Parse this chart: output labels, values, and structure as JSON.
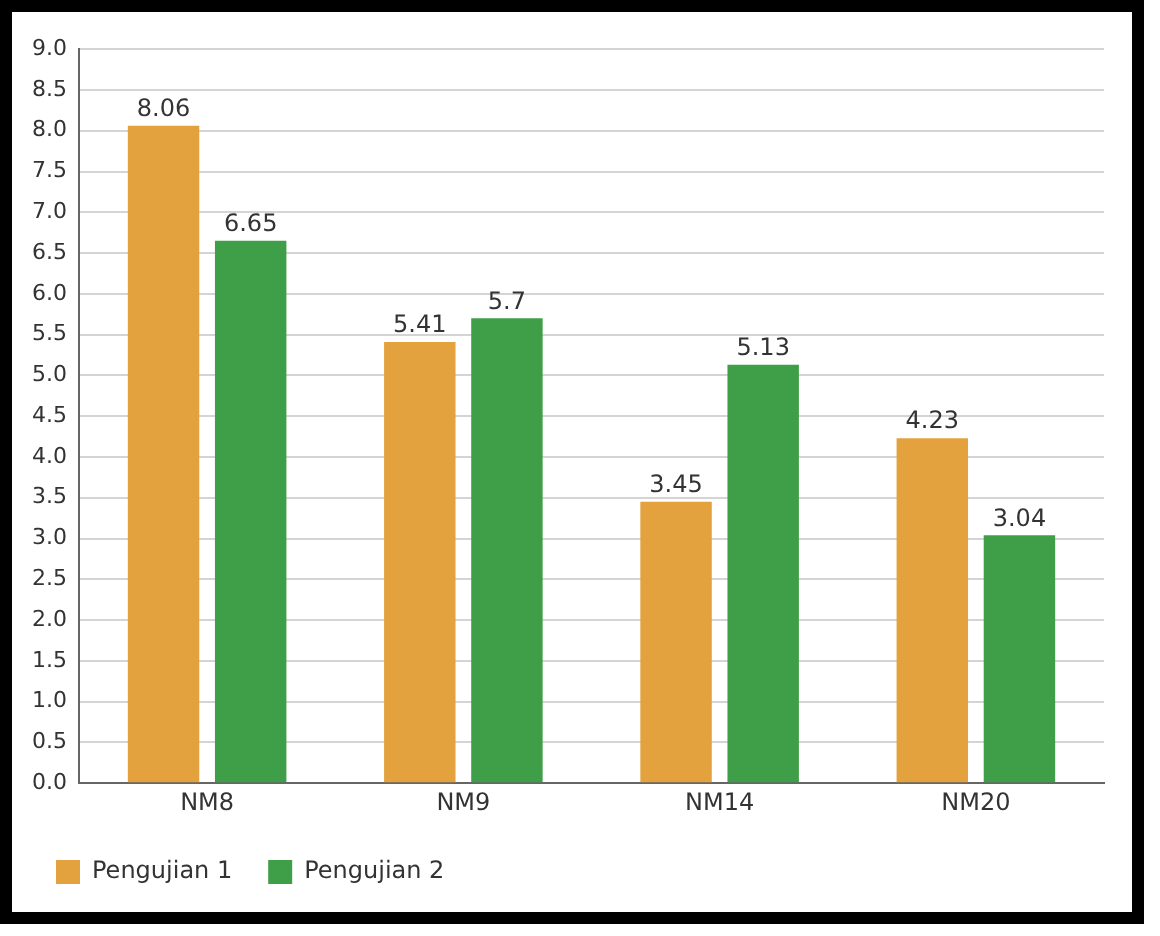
{
  "chart_data": {
    "type": "bar",
    "categories": [
      "NM8",
      "NM9",
      "NM14",
      "NM20"
    ],
    "series": [
      {
        "name": "Pengujian 1",
        "color": "#e3a23e",
        "values": [
          8.06,
          5.41,
          3.45,
          4.23
        ]
      },
      {
        "name": "Pengujian 2",
        "color": "#3f9f48",
        "values": [
          6.65,
          5.7,
          5.13,
          3.04
        ]
      }
    ],
    "ylim": [
      0,
      9
    ],
    "yticks": [
      {
        "value": 0,
        "label": "0.0"
      },
      {
        "value": 0.5,
        "label": "0.5"
      },
      {
        "value": 1,
        "label": "1.0"
      },
      {
        "value": 1.5,
        "label": "1.5"
      },
      {
        "value": 2,
        "label": "2.0"
      },
      {
        "value": 2.5,
        "label": "2.5"
      },
      {
        "value": 3,
        "label": "3.0"
      },
      {
        "value": 3.5,
        "label": "3.5"
      },
      {
        "value": 4,
        "label": "4.0"
      },
      {
        "value": 4.5,
        "label": "4.5"
      },
      {
        "value": 5,
        "label": "5.0"
      },
      {
        "value": 5.5,
        "label": "5.5"
      },
      {
        "value": 6,
        "label": "6.0"
      },
      {
        "value": 6.5,
        "label": "6.5"
      },
      {
        "value": 7,
        "label": "7.0"
      },
      {
        "value": 7.5,
        "label": "7.5"
      },
      {
        "value": 8,
        "label": "8.0"
      },
      {
        "value": 8.5,
        "label": "8.5"
      },
      {
        "value": 9,
        "label": "9.0"
      }
    ],
    "grid": "y",
    "legend": "bottom left",
    "data_labels": true
  }
}
